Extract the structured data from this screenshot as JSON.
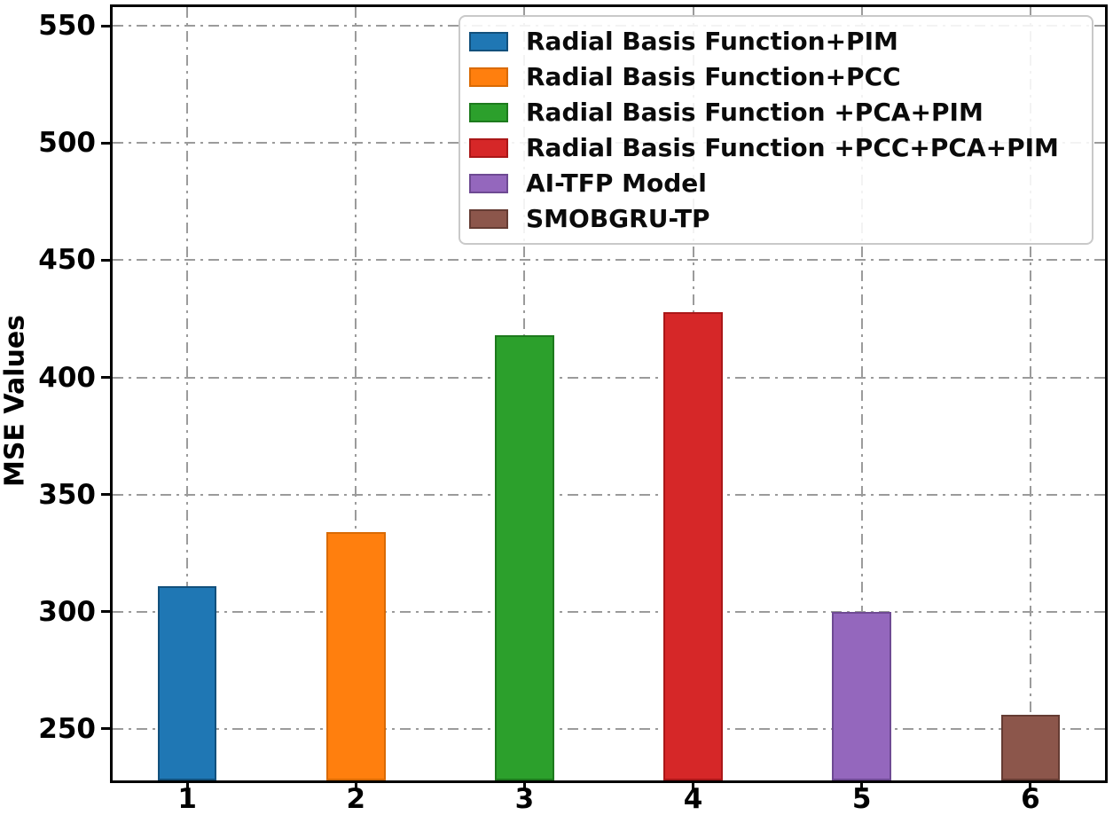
{
  "chart_data": {
    "type": "bar",
    "title": "",
    "xlabel": "",
    "ylabel": "MSE Values",
    "ylim": [
      228,
      558
    ],
    "xlim": [
      0.5575,
      6.4425
    ],
    "bar_width": 0.35,
    "grid": {
      "style": "dash-dot",
      "color": "#9b9b9b",
      "horizontal": true,
      "vertical": true
    },
    "legend_position": "upper-right-inside",
    "yticks": [
      250,
      300,
      350,
      400,
      450,
      500,
      550
    ],
    "ytick_labels": [
      "250",
      "300",
      "350",
      "400",
      "450",
      "500",
      "550"
    ],
    "x_positions": [
      1,
      2,
      3,
      4,
      5,
      6
    ],
    "xtick_labels": [
      "1",
      "2",
      "3",
      "4",
      "5",
      "6"
    ],
    "categories": [
      "1",
      "2",
      "3",
      "4",
      "5",
      "6"
    ],
    "series": [
      {
        "x": 1,
        "label": "Radial Basis Function+PIM",
        "value": 311,
        "color": "#1f77b4",
        "edge": "#12507c"
      },
      {
        "x": 2,
        "label": "Radial Basis Function+PCC",
        "value": 334,
        "color": "#ff7f0e",
        "edge": "#d96a04"
      },
      {
        "x": 3,
        "label": "Radial Basis Function +PCA+PIM",
        "value": 418,
        "color": "#2ca02c",
        "edge": "#1d7a1d"
      },
      {
        "x": 4,
        "label": "Radial Basis Function +PCC+PCA+PIM",
        "value": 428,
        "color": "#d62728",
        "edge": "#aa1718"
      },
      {
        "x": 5,
        "label": "AI-TFP Model",
        "value": 300,
        "color": "#9467bd",
        "edge": "#6e4a93"
      },
      {
        "x": 6,
        "label": "SMOBGRU-TP",
        "value": 256,
        "color": "#8c564b",
        "edge": "#653c33"
      }
    ]
  }
}
